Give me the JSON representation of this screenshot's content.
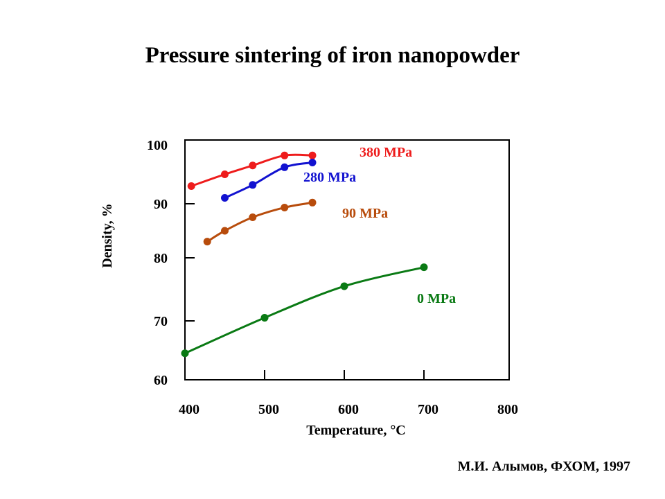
{
  "chart_data": {
    "type": "line",
    "title": "Pressure sintering of iron nanopowder",
    "xlabel": "Temperature, °C",
    "ylabel": "Density, %",
    "xlim": [
      400,
      800
    ],
    "ylim": [
      60,
      100
    ],
    "xticks": [
      400,
      500,
      600,
      700,
      800
    ],
    "yticks": [
      60,
      70,
      80,
      90,
      100
    ],
    "grid": false,
    "series": [
      {
        "name": "380 MPa",
        "color": "#ee1c1c",
        "x": [
          408,
          450,
          485,
          525,
          560
        ],
        "y": [
          93.0,
          95.0,
          96.5,
          98.2,
          98.2
        ]
      },
      {
        "name": "280 MPa",
        "color": "#1212d0",
        "x": [
          450,
          485,
          525,
          560
        ],
        "y": [
          91.0,
          93.2,
          96.2,
          97.0
        ]
      },
      {
        "name": "90 MPa",
        "color": "#b84c0c",
        "x": [
          428,
          450,
          485,
          525,
          560
        ],
        "y": [
          83.0,
          85.0,
          87.5,
          89.3,
          90.2
        ]
      },
      {
        "name": "0 MPa",
        "color": "#0a7a14",
        "x": [
          400,
          500,
          600,
          700
        ],
        "y": [
          64.5,
          70.5,
          75.5,
          78.5
        ]
      }
    ]
  },
  "credit": "М.И. Алымов, ФХОМ, 1997"
}
